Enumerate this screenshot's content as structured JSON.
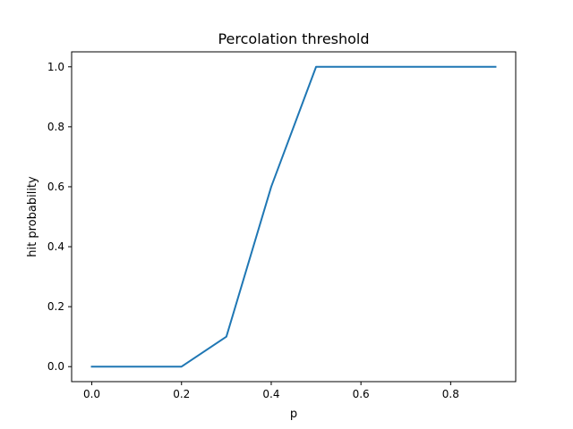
{
  "chart_data": {
    "type": "line",
    "title": "Percolation threshold",
    "xlabel": "p",
    "ylabel": "hit probability",
    "x": [
      0.0,
      0.1,
      0.2,
      0.3,
      0.4,
      0.5,
      0.6,
      0.7,
      0.8,
      0.9
    ],
    "series": [
      {
        "values": [
          0.0,
          0.0,
          0.0,
          0.1,
          0.6,
          1.0,
          1.0,
          1.0,
          1.0,
          1.0
        ],
        "color": "#1f77b4"
      }
    ],
    "xlim": [
      -0.045,
      0.945
    ],
    "ylim": [
      -0.05,
      1.05
    ],
    "xticks": [
      0.0,
      0.2,
      0.4,
      0.6,
      0.8
    ],
    "xtick_labels": [
      "0.0",
      "0.2",
      "0.4",
      "0.6",
      "0.8"
    ],
    "yticks": [
      0.0,
      0.2,
      0.4,
      0.6,
      0.8,
      1.0
    ],
    "ytick_labels": [
      "0.0",
      "0.2",
      "0.4",
      "0.6",
      "0.8",
      "1.0"
    ],
    "grid": false,
    "legend": "none"
  }
}
